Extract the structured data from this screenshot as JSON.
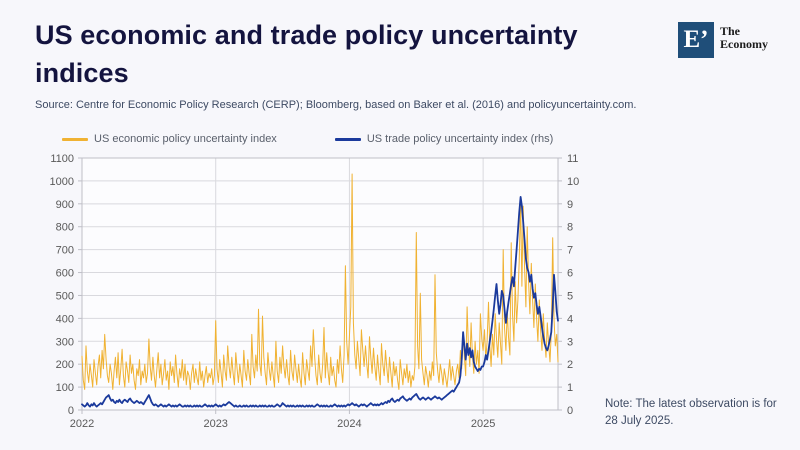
{
  "title": "US economic and trade policy uncertainty indices",
  "source": "Source: Centre for Economic Policy Research (CERP); Bloomberg, based on Baker et al. (2016) and policyuncertainty.com.",
  "note": "Note: The latest observation is for 28 July 2025.",
  "logo": {
    "mark": "E’",
    "name_line1": "The",
    "name_line2": "Economy",
    "mark_color": "#1f4e79"
  },
  "colors": {
    "background": "#f7f7fb",
    "title": "#14143f",
    "body_text": "#3d4a63",
    "axis_text": "#595959",
    "grid": "#d9d9de",
    "plot_border": "#bfbfc7",
    "economic_series": "#f0b232",
    "trade_series": "#1b3a9c"
  },
  "chart_data": {
    "type": "line",
    "title": "",
    "xlabel": "",
    "ylabel_left": "",
    "ylabel_right": "",
    "grid": true,
    "legend_position": "top",
    "x_start": 2022.0,
    "x_step_years": 0.01,
    "x_ticks": [
      2022,
      2023,
      2024,
      2025
    ],
    "left_axis": {
      "min": 0,
      "max": 1100,
      "tick_step": 100
    },
    "right_axis": {
      "min": 0,
      "max": 11,
      "tick_step": 1
    },
    "series": [
      {
        "name": "US economic policy uncertainty index",
        "axis": "left",
        "color": "#f0b232",
        "values": [
          235,
          130,
          90,
          280,
          170,
          120,
          200,
          150,
          100,
          220,
          160,
          110,
          190,
          240,
          140,
          260,
          180,
          330,
          220,
          150,
          120,
          200,
          160,
          90,
          170,
          230,
          140,
          250,
          110,
          180,
          265,
          150,
          100,
          210,
          170,
          120,
          240,
          160,
          200,
          130,
          90,
          180,
          150,
          220,
          110,
          170,
          140,
          200,
          120,
          160,
          310,
          190,
          130,
          230,
          150,
          100,
          180,
          250,
          140,
          200,
          110,
          160,
          220,
          130,
          170,
          90,
          210,
          150,
          190,
          120,
          240,
          160,
          100,
          180,
          140,
          220,
          130,
          200,
          110,
          170,
          150,
          90,
          160,
          200,
          120,
          180,
          140,
          110,
          210,
          130,
          170,
          100,
          150,
          190,
          120,
          160,
          140,
          180,
          110,
          150,
          390,
          180,
          120,
          220,
          160,
          100,
          240,
          170,
          130,
          280,
          190,
          140,
          230,
          160,
          110,
          250,
          180,
          120,
          200,
          150,
          100,
          260,
          170,
          130,
          220,
          160,
          110,
          330,
          190,
          140,
          240,
          170,
          440,
          200,
          150,
          410,
          230,
          160,
          110,
          250,
          180,
          130,
          210,
          150,
          100,
          300,
          170,
          120,
          230,
          160,
          280,
          190,
          140,
          220,
          150,
          110,
          260,
          170,
          130,
          240,
          180,
          120,
          200,
          140,
          100,
          250,
          160,
          110,
          220,
          170,
          130,
          280,
          190,
          350,
          230,
          150,
          110,
          240,
          160,
          120,
          200,
          360,
          140,
          250,
          170,
          110,
          230,
          150,
          190,
          130,
          100,
          220,
          160,
          280,
          180,
          120,
          240,
          630,
          300,
          200,
          320,
          450,
          1030,
          380,
          240,
          180,
          300,
          220,
          150,
          350,
          260,
          190,
          280,
          200,
          140,
          320,
          230,
          160,
          270,
          190,
          130,
          240,
          170,
          110,
          290,
          200,
          150,
          260,
          180,
          120,
          230,
          160,
          100,
          210,
          150,
          190,
          130,
          90,
          220,
          160,
          110,
          180,
          140,
          200,
          120,
          170,
          100,
          150,
          130,
          190,
          775,
          280,
          180,
          510,
          220,
          160,
          110,
          190,
          150,
          100,
          170,
          130,
          210,
          150,
          590,
          250,
          170,
          120,
          200,
          160,
          110,
          180,
          140,
          100,
          160,
          220,
          130,
          190,
          150,
          110,
          170,
          200,
          140,
          260,
          180,
          340,
          230,
          150,
          450,
          280,
          190,
          380,
          240,
          160,
          300,
          200,
          260,
          160,
          420,
          310,
          260,
          350,
          220,
          300,
          470,
          280,
          190,
          330,
          240,
          420,
          310,
          230,
          380,
          290,
          200,
          700,
          360,
          260,
          430,
          320,
          240,
          730,
          420,
          300,
          560,
          380,
          480,
          650,
          910,
          540,
          890,
          620,
          450,
          800,
          560,
          420,
          640,
          480,
          360,
          550,
          400,
          300,
          480,
          350,
          260,
          420,
          310,
          230,
          380,
          290,
          210,
          340,
          752,
          400,
          280,
          330,
          210
        ]
      },
      {
        "name": "US trade policy uncertainty index (rhs)",
        "axis": "right",
        "color": "#1b3a9c",
        "values": [
          0.25,
          0.2,
          0.15,
          0.2,
          0.3,
          0.2,
          0.15,
          0.25,
          0.2,
          0.3,
          0.2,
          0.15,
          0.2,
          0.25,
          0.3,
          0.25,
          0.35,
          0.45,
          0.55,
          0.6,
          0.65,
          0.5,
          0.4,
          0.45,
          0.35,
          0.3,
          0.4,
          0.35,
          0.45,
          0.35,
          0.3,
          0.4,
          0.45,
          0.4,
          0.35,
          0.45,
          0.5,
          0.4,
          0.35,
          0.3,
          0.35,
          0.4,
          0.35,
          0.3,
          0.35,
          0.3,
          0.25,
          0.35,
          0.45,
          0.55,
          0.65,
          0.5,
          0.35,
          0.25,
          0.2,
          0.25,
          0.2,
          0.15,
          0.2,
          0.25,
          0.2,
          0.15,
          0.2,
          0.15,
          0.2,
          0.25,
          0.2,
          0.15,
          0.2,
          0.15,
          0.2,
          0.15,
          0.2,
          0.25,
          0.2,
          0.15,
          0.15,
          0.2,
          0.15,
          0.2,
          0.15,
          0.2,
          0.15,
          0.15,
          0.2,
          0.15,
          0.2,
          0.15,
          0.2,
          0.15,
          0.15,
          0.2,
          0.25,
          0.2,
          0.15,
          0.2,
          0.15,
          0.2,
          0.15,
          0.2,
          0.25,
          0.2,
          0.15,
          0.2,
          0.15,
          0.2,
          0.25,
          0.2,
          0.25,
          0.3,
          0.35,
          0.3,
          0.25,
          0.2,
          0.15,
          0.2,
          0.15,
          0.15,
          0.2,
          0.15,
          0.15,
          0.2,
          0.15,
          0.2,
          0.15,
          0.15,
          0.2,
          0.15,
          0.2,
          0.15,
          0.2,
          0.15,
          0.15,
          0.2,
          0.15,
          0.2,
          0.15,
          0.2,
          0.15,
          0.15,
          0.2,
          0.15,
          0.2,
          0.15,
          0.15,
          0.2,
          0.25,
          0.2,
          0.15,
          0.2,
          0.3,
          0.25,
          0.2,
          0.15,
          0.2,
          0.15,
          0.2,
          0.15,
          0.2,
          0.15,
          0.15,
          0.2,
          0.15,
          0.2,
          0.15,
          0.2,
          0.15,
          0.15,
          0.2,
          0.15,
          0.2,
          0.15,
          0.2,
          0.15,
          0.15,
          0.2,
          0.25,
          0.2,
          0.15,
          0.2,
          0.15,
          0.2,
          0.15,
          0.2,
          0.15,
          0.15,
          0.2,
          0.15,
          0.2,
          0.25,
          0.2,
          0.15,
          0.2,
          0.15,
          0.2,
          0.15,
          0.2,
          0.15,
          0.2,
          0.25,
          0.2,
          0.25,
          0.3,
          0.25,
          0.2,
          0.25,
          0.2,
          0.15,
          0.2,
          0.25,
          0.2,
          0.25,
          0.2,
          0.15,
          0.2,
          0.25,
          0.3,
          0.25,
          0.2,
          0.25,
          0.2,
          0.25,
          0.2,
          0.25,
          0.3,
          0.25,
          0.3,
          0.35,
          0.3,
          0.4,
          0.35,
          0.45,
          0.5,
          0.4,
          0.35,
          0.4,
          0.45,
          0.4,
          0.5,
          0.55,
          0.6,
          0.5,
          0.45,
          0.4,
          0.45,
          0.5,
          0.45,
          0.55,
          0.6,
          0.65,
          0.7,
          0.6,
          0.5,
          0.45,
          0.5,
          0.55,
          0.5,
          0.45,
          0.5,
          0.55,
          0.5,
          0.45,
          0.5,
          0.55,
          0.6,
          0.55,
          0.5,
          0.55,
          0.5,
          0.45,
          0.5,
          0.55,
          0.6,
          0.65,
          0.7,
          0.75,
          0.8,
          0.85,
          0.8,
          0.9,
          1.0,
          1.1,
          1.2,
          1.5,
          2.2,
          3.4,
          2.8,
          2.2,
          2.9,
          2.4,
          2.7,
          2.3,
          2.6,
          2.1,
          1.9,
          1.8,
          1.7,
          1.8,
          1.75,
          1.9,
          1.9,
          2.1,
          2.4,
          2.2,
          2.6,
          3.0,
          3.4,
          3.9,
          4.4,
          5.0,
          5.5,
          4.8,
          4.2,
          4.6,
          5.2,
          5.0,
          4.4,
          3.8,
          4.3,
          4.7,
          5.1,
          5.5,
          5.8,
          5.4,
          6.2,
          7.0,
          7.8,
          8.6,
          9.3,
          8.9,
          8.2,
          7.4,
          6.6,
          6.2,
          6.0,
          5.6,
          5.9,
          5.3,
          4.9,
          5.1,
          4.6,
          4.2,
          4.5,
          4.1,
          3.6,
          3.2,
          2.9,
          2.7,
          2.6,
          2.8,
          3.1,
          3.4,
          4.5,
          5.9,
          5.2,
          4.3,
          3.9
        ]
      }
    ]
  }
}
